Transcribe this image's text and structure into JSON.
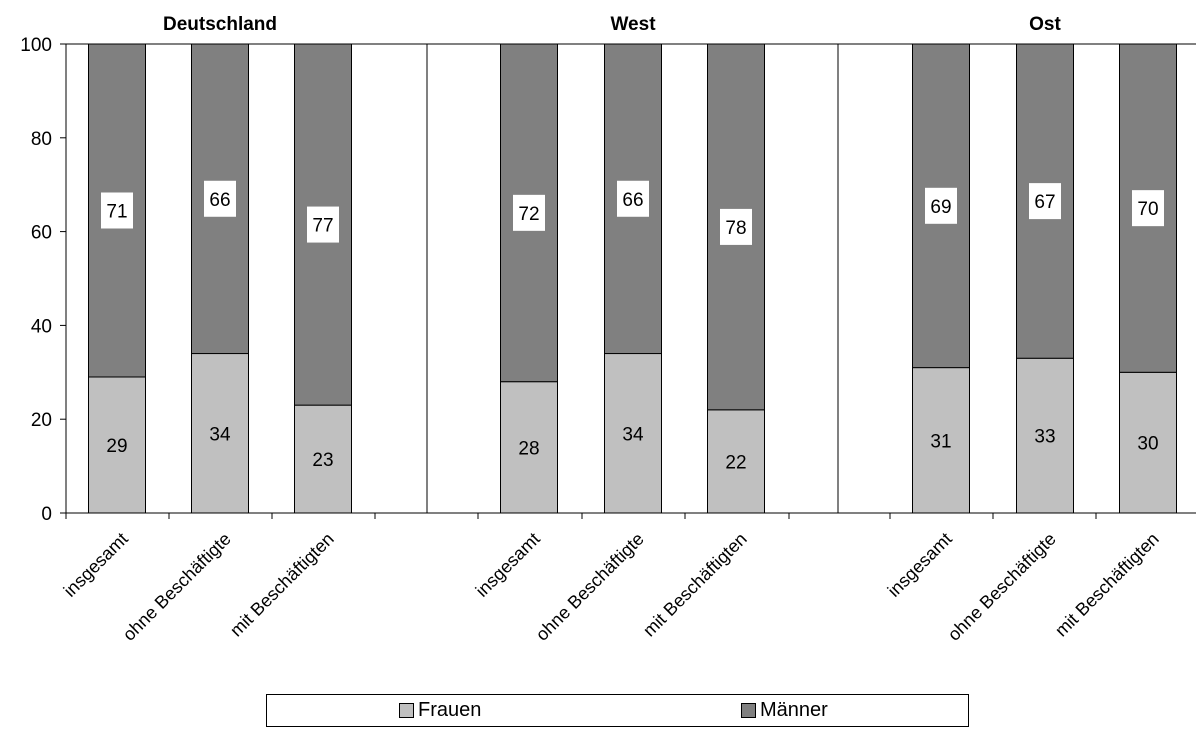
{
  "chart_data": {
    "type": "bar",
    "stacked": true,
    "ylim": [
      0,
      100
    ],
    "yticks": [
      0,
      20,
      40,
      60,
      80,
      100
    ],
    "grid": false,
    "legend_placement": "bottom",
    "colors": {
      "Frauen": "#c0c0c0",
      "Männer": "#808080"
    },
    "panels": [
      {
        "title": "Deutschland",
        "categories": [
          "insgesamt",
          "ohne Beschäftigte",
          "mit Beschäftigten"
        ],
        "series": [
          {
            "name": "Frauen",
            "values": [
              29,
              34,
              23
            ]
          },
          {
            "name": "Männer",
            "values": [
              71,
              66,
              77
            ]
          }
        ]
      },
      {
        "title": "West",
        "categories": [
          "insgesamt",
          "ohne Beschäftigte",
          "mit Beschäftigten"
        ],
        "series": [
          {
            "name": "Frauen",
            "values": [
              28,
              34,
              22
            ]
          },
          {
            "name": "Männer",
            "values": [
              72,
              66,
              78
            ]
          }
        ]
      },
      {
        "title": "Ost",
        "categories": [
          "insgesamt",
          "ohne Beschäftigte",
          "mit Beschäftigten"
        ],
        "series": [
          {
            "name": "Frauen",
            "values": [
              31,
              33,
              30
            ]
          },
          {
            "name": "Männer",
            "values": [
              69,
              67,
              70
            ]
          }
        ]
      }
    ]
  },
  "legend": [
    {
      "label": "Frauen",
      "color": "#c0c0c0"
    },
    {
      "label": "Männer",
      "color": "#808080"
    }
  ]
}
